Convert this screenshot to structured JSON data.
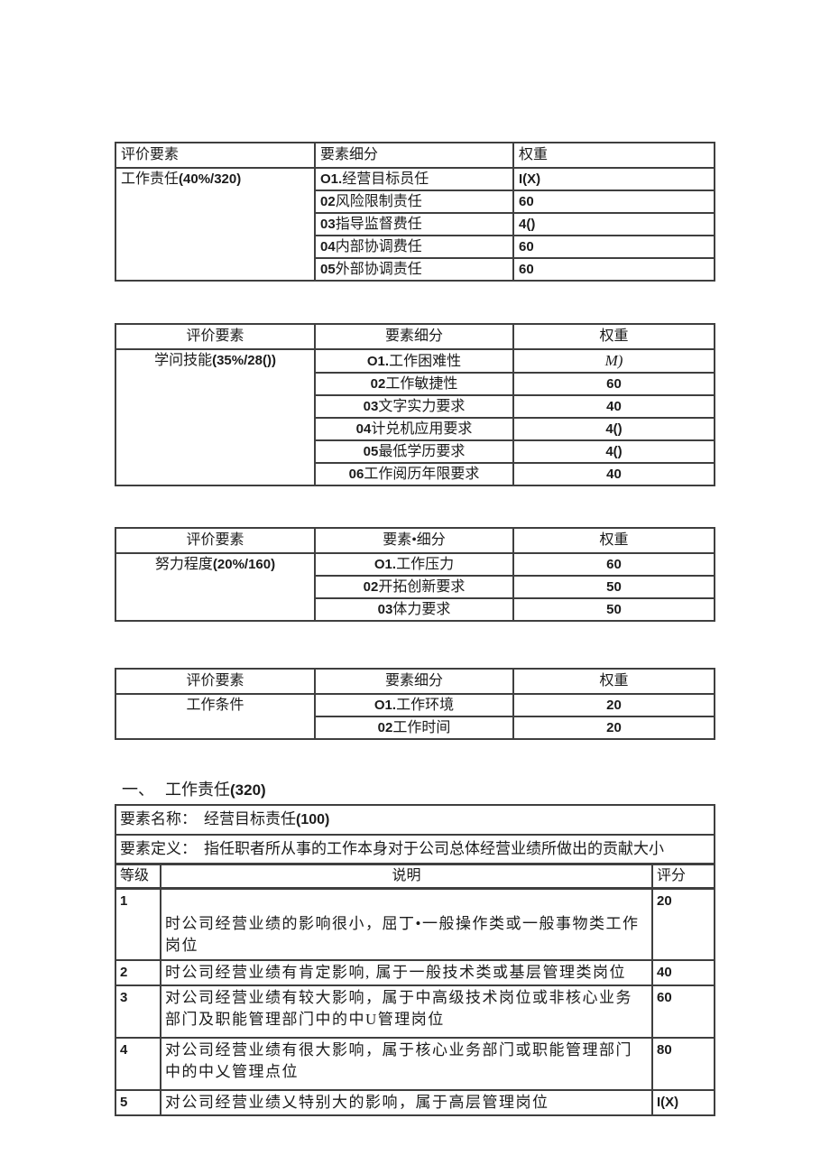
{
  "colors": {
    "background": "#ffffff",
    "text": "#1b1b1b",
    "border": "#3f3f3f"
  },
  "weight_tables": [
    {
      "headers": [
        "评价要素",
        "要素细分",
        "权重"
      ],
      "factor": {
        "name": "工作责任",
        "suffix": "(40%/320)"
      },
      "rows": [
        {
          "num": "O1.",
          "label": "经营目标员任",
          "weight": "I(X)"
        },
        {
          "num": "02",
          "label": "风险限制责任",
          "weight": "60"
        },
        {
          "num": "03",
          "label": "指导监督费任",
          "weight": "4()"
        },
        {
          "num": "04",
          "label": "内部协调费任",
          "weight": "60"
        },
        {
          "num": "05",
          "label": "外部协调责任",
          "weight": "60"
        }
      ]
    },
    {
      "headers": [
        "评价要素",
        "要素细分",
        "权重"
      ],
      "factor": {
        "name": "学问技能",
        "suffix": "(35%/28())"
      },
      "rows": [
        {
          "num": "O1.",
          "label": "工作困难性",
          "weight": "M)",
          "weight_style": "italic"
        },
        {
          "num": "02",
          "label": "工作敏捷性",
          "weight": "60"
        },
        {
          "num": "03",
          "label": "文字实力要求",
          "weight": "40"
        },
        {
          "num": "04",
          "label": "计兑机应用要求",
          "weight": "4()"
        },
        {
          "num": "05",
          "label": "最低学历要求",
          "weight": "4()"
        },
        {
          "num": "06",
          "label": "工作阅历年限要求",
          "weight": "40"
        }
      ]
    },
    {
      "headers": [
        "评价要素",
        "要素•细分",
        "权重"
      ],
      "factor": {
        "name": "努力程度",
        "suffix": "(20%/160)"
      },
      "rows": [
        {
          "num": "O1.",
          "label": "工作压力",
          "weight": "60"
        },
        {
          "num": "02",
          "label": "开拓创新要求",
          "weight": "50"
        },
        {
          "num": "03",
          "label": "体力要求",
          "weight": "50"
        }
      ]
    },
    {
      "headers": [
        "评价要素",
        "要素细分",
        "权重"
      ],
      "factor": {
        "name": "工作条件",
        "suffix": ""
      },
      "rows": [
        {
          "num": "O1.",
          "label": "工作环境",
          "weight": "20"
        },
        {
          "num": "02",
          "label": "工作时间",
          "weight": "20"
        }
      ]
    }
  ],
  "section": {
    "heading_num": "一、",
    "heading_title": "工作责任",
    "heading_suffix": "(320)",
    "name_label": "要素名称：",
    "name_value": "经营目标责任",
    "name_suffix": "(100)",
    "def_label": "要素定义：",
    "def_value": "指任职者所从事的工作本身对于公司总体经营业绩所做出的贡献大小",
    "grade_headers": [
      "等级",
      "说明",
      "评分"
    ],
    "grades": [
      {
        "level": "1",
        "desc": "时公司经营业绩的影响很小，屈丁•一般操作类或一般事物类工作岗位",
        "score": "20"
      },
      {
        "level": "2",
        "desc": "时公司经营业绩有肯定影响, 属于一般技术类或基层管理类岗位",
        "score": "40"
      },
      {
        "level": "3",
        "desc": "对公司经营业绩有较大影响，属于中高级技术岗位或非核心业务部门及职能管理部门中的中U管理岗位",
        "score": "60"
      },
      {
        "level": "4",
        "desc": "对公司经营业绩有很大影响，属于核心业务部门或职能管理部门中的中乂管理点位",
        "score": "80"
      },
      {
        "level": "5",
        "desc": "对公司经营业绩乂特别大的影响，属于高层管理岗位",
        "score": "I(X)"
      }
    ]
  }
}
